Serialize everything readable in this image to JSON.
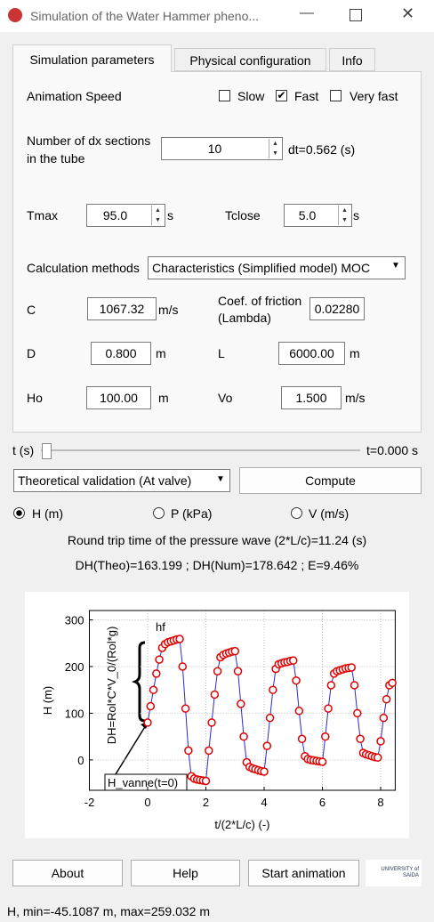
{
  "window": {
    "title": "Simulation of the Water Hammer pheno..."
  },
  "tabs": [
    "Simulation parameters",
    "Physical configuration",
    "Info"
  ],
  "active_tab": 0,
  "animation": {
    "label": "Animation Speed",
    "options": [
      "Slow",
      "Fast",
      "Very fast"
    ],
    "checked": [
      false,
      true,
      false
    ]
  },
  "dx": {
    "label_lines": [
      "Number of dx sections",
      "in the tube"
    ],
    "value": "10",
    "dt": "dt=0.562 (s)"
  },
  "tmax": {
    "label": "Tmax",
    "value": "95.0",
    "unit": "s"
  },
  "tclose": {
    "label": "Tclose",
    "value": "5.0",
    "unit": "s"
  },
  "method": {
    "label": "Calculation methods",
    "value": "Characteristics (Simplified model) MOC"
  },
  "fields": {
    "c": {
      "label": "C",
      "value": "1067.32",
      "unit": "m/s"
    },
    "lambda": {
      "label_lines": [
        "Coef. of friction",
        "(Lambda)"
      ],
      "value": "0.02280"
    },
    "d": {
      "label": "D",
      "value": "0.800",
      "unit": "m"
    },
    "l": {
      "label": "L",
      "value": "6000.00",
      "unit": "m"
    },
    "ho": {
      "label": "Ho",
      "value": "100.00",
      "unit": "m"
    },
    "vo": {
      "label": "Vo",
      "value": "1.500",
      "unit": "m/s"
    }
  },
  "slider": {
    "label": "t (s)",
    "value_text": "t=0.000 s"
  },
  "validation": {
    "value": "Theoretical validation (At valve)",
    "button": "Compute"
  },
  "radios": {
    "options": [
      "H (m)",
      "P (kPa)",
      "V (m/s)"
    ],
    "selected": 0
  },
  "info": [
    "Round trip time of the pressure wave (2*L/c)=11.24 (s)",
    "DH(Theo)=163.199 ; DH(Num)=178.642 ; E=9.46%"
  ],
  "buttons": [
    "About",
    "Help",
    "Start animation"
  ],
  "logo": "UNIVERSITY of SAIDA",
  "status": "H, min=-45.1087 m, max=259.032 m",
  "chart_data": {
    "type": "line",
    "x_label": "t/(2*L/c) (-)",
    "y_label": "H (m)",
    "xlim": [
      -2,
      8.5
    ],
    "ylim": [
      -65,
      320
    ],
    "xticks": [
      -2,
      0,
      2,
      4,
      6,
      8
    ],
    "yticks": [
      0,
      100,
      200,
      300
    ],
    "grid": true,
    "annotations": [
      "hf",
      "DH=Rol*C*V_0/(Rol*g)",
      "H_vanne(t=0)"
    ],
    "x": [
      0,
      0.1,
      0.2,
      0.3,
      0.4,
      0.5,
      0.6,
      0.7,
      0.8,
      0.9,
      1,
      1.1,
      1.2,
      1.3,
      1.4,
      1.5,
      1.6,
      1.7,
      1.8,
      1.9,
      2,
      2.1,
      2.2,
      2.3,
      2.4,
      2.5,
      2.6,
      2.7,
      2.8,
      2.9,
      3,
      3.1,
      3.2,
      3.3,
      3.4,
      3.5,
      3.6,
      3.7,
      3.8,
      3.9,
      4,
      4.1,
      4.2,
      4.3,
      4.4,
      4.5,
      4.6,
      4.7,
      4.8,
      4.9,
      5,
      5.1,
      5.2,
      5.3,
      5.4,
      5.5,
      5.6,
      5.7,
      5.8,
      5.9,
      6,
      6.1,
      6.2,
      6.3,
      6.4,
      6.5,
      6.6,
      6.7,
      6.8,
      6.9,
      7,
      7.1,
      7.2,
      7.3,
      7.4,
      7.5,
      7.6,
      7.7,
      7.8,
      7.9,
      8,
      8.1,
      8.2,
      8.3,
      8.4
    ],
    "series": [
      {
        "color": "#2a2ad0",
        "marker_color": "#e00000",
        "values": [
          80,
          115,
          150,
          185,
          215,
          240,
          248,
          252,
          254,
          256,
          258,
          259,
          200,
          110,
          20,
          -35,
          -40,
          -42,
          -43,
          -44,
          -45,
          20,
          80,
          140,
          190,
          220,
          225,
          228,
          230,
          232,
          233,
          190,
          120,
          50,
          -5,
          -15,
          -18,
          -20,
          -22,
          -24,
          -25,
          30,
          90,
          150,
          195,
          205,
          207,
          209,
          210,
          212,
          213,
          170,
          105,
          45,
          8,
          2,
          0,
          -1,
          -2,
          -3,
          -4,
          50,
          110,
          160,
          185,
          190,
          192,
          194,
          196,
          197,
          198,
          160,
          100,
          45,
          15,
          12,
          10,
          8,
          6,
          5,
          40,
          90,
          130,
          160,
          165
        ]
      }
    ]
  }
}
